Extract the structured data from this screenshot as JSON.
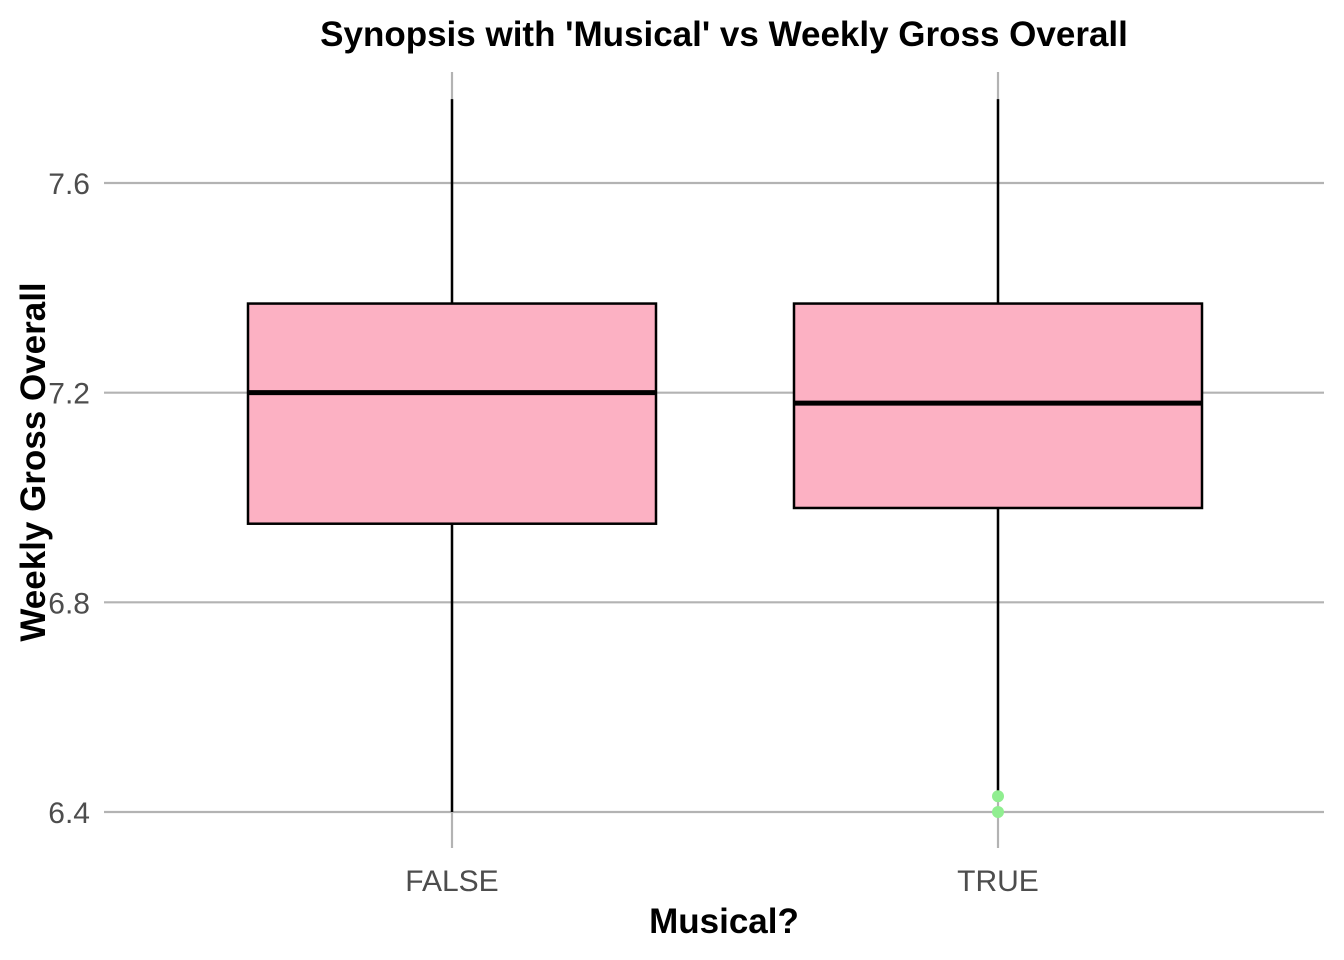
{
  "chart_data": {
    "type": "box",
    "title": "Synopsis with 'Musical' vs Weekly Gross Overall",
    "xlabel": "Musical?",
    "ylabel": "Weekly Gross Overall",
    "categories": [
      "FALSE",
      "TRUE"
    ],
    "y_ticks": [
      "6.4",
      "6.8",
      "7.2",
      "7.6"
    ],
    "ylim": [
      6.36,
      7.83
    ],
    "boxes": [
      {
        "category": "FALSE",
        "whisker_low": 6.4,
        "q1": 6.95,
        "median": 7.2,
        "q3": 7.37,
        "whisker_high": 7.76,
        "outliers": []
      },
      {
        "category": "TRUE",
        "whisker_low": 6.43,
        "q1": 6.98,
        "median": 7.18,
        "q3": 7.37,
        "whisker_high": 7.76,
        "outliers": [
          6.43,
          6.4
        ]
      }
    ],
    "grid": true,
    "colors": {
      "box_fill": "#fcb1c3",
      "box_stroke": "#000000",
      "outlier": "#90ee90",
      "grid": "#b3b3b3"
    }
  }
}
